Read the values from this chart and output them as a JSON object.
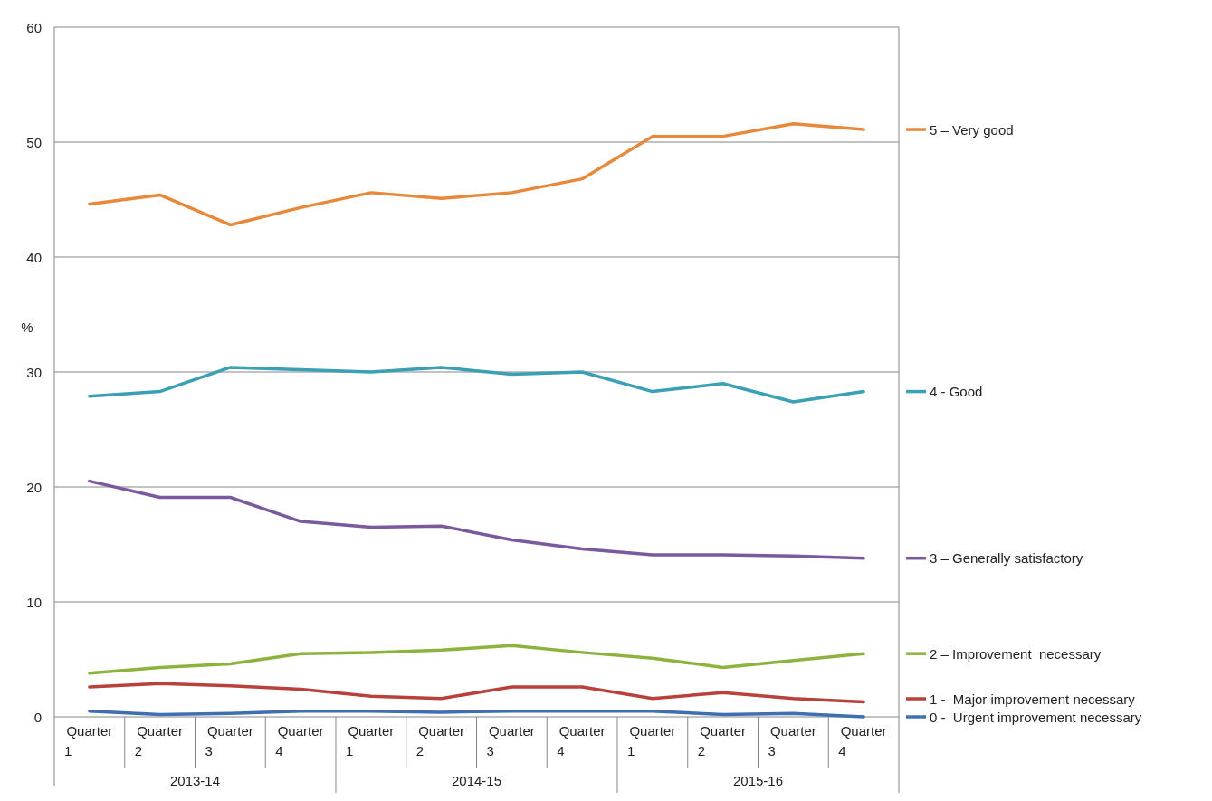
{
  "chart_data": {
    "type": "line",
    "ylabel": "%",
    "categories": [
      "Quarter 1",
      "Quarter 2",
      "Quarter 3",
      "Quarter 4",
      "Quarter 1",
      "Quarter 2",
      "Quarter 3",
      "Quarter 4",
      "Quarter 1",
      "Quarter 2",
      "Quarter 3",
      "Quarter 4"
    ],
    "annotations": [
      "2013-14",
      "2014-15",
      "2015-16"
    ],
    "ylim": [
      0,
      60
    ],
    "yticks": [
      0,
      10,
      20,
      30,
      40,
      50,
      60
    ],
    "grid": "y",
    "legend": "right",
    "line_style": "solid",
    "marker": "none",
    "series": [
      {
        "name": "5 – Very good",
        "color": "#e8883a",
        "values": [
          44.6,
          45.4,
          42.8,
          44.3,
          45.6,
          45.1,
          45.6,
          46.8,
          50.5,
          50.5,
          51.6,
          51.1
        ]
      },
      {
        "name": "4 - Good",
        "color": "#3b9fb5",
        "values": [
          27.9,
          28.3,
          30.4,
          30.2,
          30.0,
          30.4,
          29.8,
          30.0,
          28.3,
          29.0,
          27.4,
          28.3
        ]
      },
      {
        "name": "3 – Generally satisfactory",
        "color": "#7a5a9e",
        "values": [
          20.5,
          19.1,
          19.1,
          17.0,
          16.5,
          16.6,
          15.4,
          14.6,
          14.1,
          14.1,
          14.0,
          13.8
        ]
      },
      {
        "name": "2 – Improvement  necessary",
        "color": "#8db33f",
        "values": [
          3.8,
          4.3,
          4.6,
          5.5,
          5.6,
          5.8,
          6.2,
          5.6,
          5.1,
          4.3,
          4.9,
          5.5
        ]
      },
      {
        "name": "1 -  Major improvement necessary",
        "color": "#b8413c",
        "values": [
          2.6,
          2.9,
          2.7,
          2.4,
          1.8,
          1.6,
          2.6,
          2.6,
          1.6,
          2.1,
          1.6,
          1.3
        ]
      },
      {
        "name": "0 -  Urgent improvement necessary",
        "color": "#3f6fb0",
        "values": [
          0.5,
          0.2,
          0.3,
          0.5,
          0.5,
          0.4,
          0.5,
          0.5,
          0.5,
          0.2,
          0.3,
          0.0
        ]
      }
    ]
  }
}
